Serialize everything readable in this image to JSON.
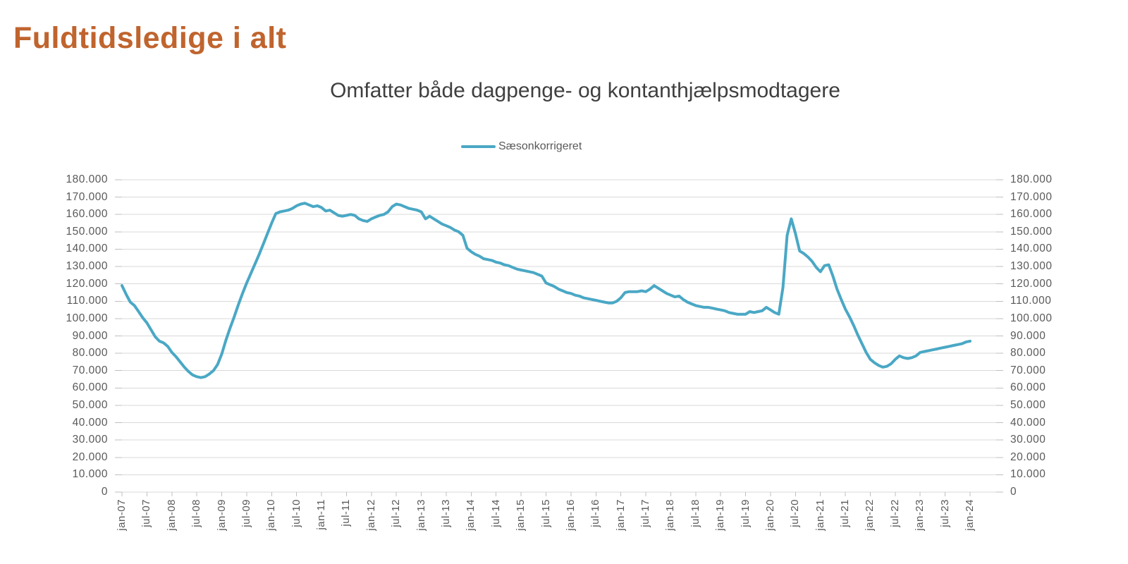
{
  "title": {
    "text": "Fuldtidsledige i alt",
    "color": "#c0642e"
  },
  "chart": {
    "subtitle": "Omfatter både dagpenge- og kontanthjælpsmodtagere",
    "legend": {
      "label": "Sæsonkorrigeret",
      "line_color": "#4aa8c5"
    }
  },
  "chart_data": {
    "type": "line",
    "title": "Omfatter både dagpenge- og kontanthjælpsmodtagere",
    "xlabel": "",
    "ylabel": "",
    "ylim": [
      0,
      180000
    ],
    "grid": "horizontal",
    "gridline_color": "#d9d9d9",
    "tick_color": "#bfbfbf",
    "axis_label_color": "#595959",
    "legend_position": "top-center",
    "x_unit": "month",
    "x_range": [
      "jan-07",
      "jan-24"
    ],
    "x_tick_labels": [
      "jan-07",
      "jul-07",
      "jan-08",
      "jul-08",
      "jan-09",
      "jul-09",
      "jan-10",
      "jul-10",
      "jan-11",
      "jul-11",
      "jan-12",
      "jul-12",
      "jan-13",
      "jul-13",
      "jan-14",
      "jul-14",
      "jan-15",
      "jul-15",
      "jan-16",
      "jul-16",
      "jan-17",
      "jul-17",
      "jan-18",
      "jul-18",
      "jan-19",
      "jul-19",
      "jan-20",
      "jul-20",
      "jan-21",
      "jul-21",
      "jan-22",
      "jul-22",
      "jan-23",
      "jul-23",
      "jan-24"
    ],
    "y_tick_labels": [
      "0",
      "10.000",
      "20.000",
      "30.000",
      "40.000",
      "50.000",
      "60.000",
      "70.000",
      "80.000",
      "90.000",
      "100.000",
      "110.000",
      "120.000",
      "130.000",
      "140.000",
      "150.000",
      "160.000",
      "170.000",
      "180.000"
    ],
    "secondary_y_axis": true,
    "series": [
      {
        "name": "Sæsonkorrigeret",
        "color": "#4aa8c5",
        "values": [
          119000,
          114000,
          109500,
          107500,
          104000,
          100500,
          97500,
          93500,
          89500,
          87000,
          86000,
          84000,
          80500,
          78000,
          75000,
          72000,
          69500,
          67500,
          66500,
          66000,
          66500,
          68000,
          70000,
          73500,
          79500,
          87500,
          94500,
          101000,
          108000,
          114500,
          120500,
          126000,
          131500,
          137000,
          143000,
          149000,
          155000,
          160500,
          161500,
          162000,
          162500,
          163500,
          165000,
          166000,
          166500,
          165500,
          164500,
          165000,
          164000,
          162000,
          162500,
          161000,
          159500,
          159000,
          159500,
          160000,
          159500,
          157500,
          156500,
          156000,
          157500,
          158500,
          159500,
          160000,
          161500,
          164500,
          166000,
          165500,
          164500,
          163500,
          163000,
          162500,
          161500,
          157500,
          159000,
          157500,
          156000,
          154500,
          153500,
          152500,
          151000,
          150000,
          148000,
          140500,
          138500,
          137000,
          136000,
          134500,
          134000,
          133500,
          132500,
          132000,
          131000,
          130500,
          129500,
          128500,
          128000,
          127500,
          127000,
          126500,
          125500,
          124500,
          120500,
          119500,
          118500,
          117000,
          116000,
          115000,
          114500,
          113500,
          113000,
          112000,
          111500,
          111000,
          110500,
          110000,
          109500,
          109000,
          109000,
          110000,
          112000,
          115000,
          115500,
          115500,
          115500,
          116000,
          115500,
          117000,
          119000,
          117500,
          116000,
          114500,
          113500,
          112500,
          113000,
          111000,
          109500,
          108500,
          107500,
          107000,
          106500,
          106500,
          106000,
          105500,
          105000,
          104500,
          103500,
          103000,
          102500,
          102500,
          102500,
          104000,
          103500,
          104000,
          104500,
          106500,
          105000,
          103500,
          102500,
          118000,
          148000,
          157500,
          149000,
          139000,
          137500,
          135500,
          133000,
          129500,
          127000,
          130500,
          131000,
          124500,
          117000,
          111000,
          105500,
          101000,
          96000,
          90500,
          85500,
          80500,
          76500,
          74500,
          73000,
          72000,
          72500,
          74000,
          76500,
          78500,
          77500,
          77000,
          77500,
          78500,
          80500,
          81000,
          81500,
          82000,
          82500,
          83000,
          83500,
          84000,
          84500,
          85000,
          85500,
          86500,
          87000
        ]
      }
    ]
  }
}
